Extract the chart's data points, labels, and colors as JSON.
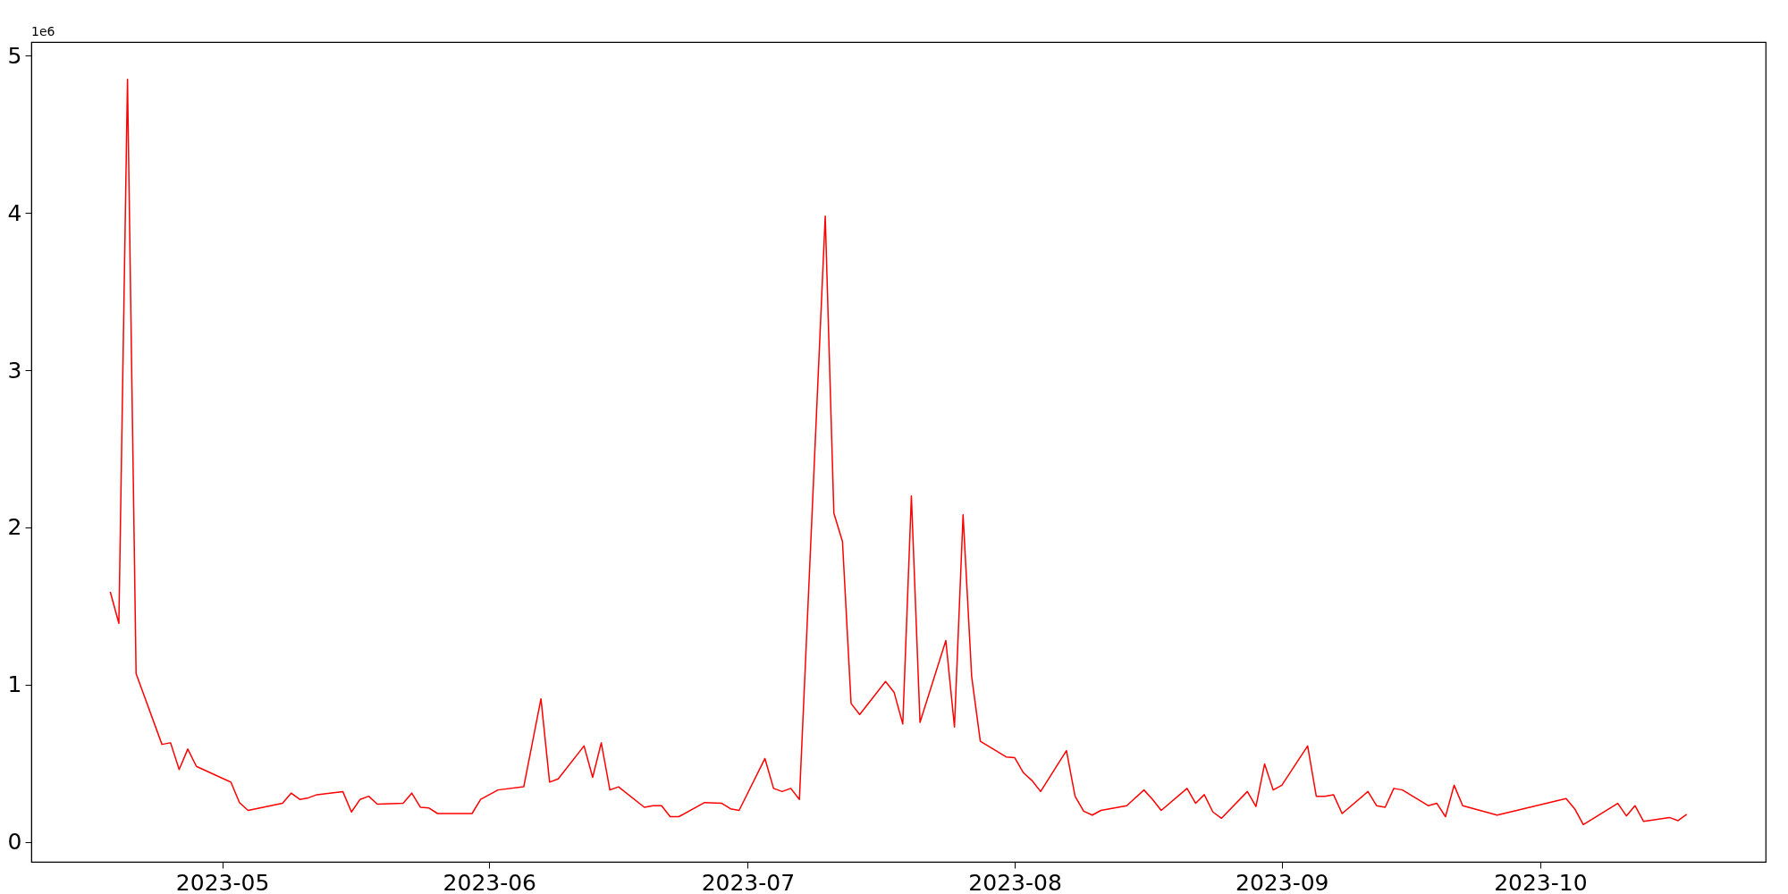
{
  "chart_data": {
    "type": "line",
    "x": [
      "2023-04-18",
      "2023-04-19",
      "2023-04-20",
      "2023-04-21",
      "2023-04-24",
      "2023-04-25",
      "2023-04-26",
      "2023-04-27",
      "2023-04-28",
      "2023-05-02",
      "2023-05-03",
      "2023-05-04",
      "2023-05-08",
      "2023-05-09",
      "2023-05-10",
      "2023-05-11",
      "2023-05-12",
      "2023-05-15",
      "2023-05-16",
      "2023-05-17",
      "2023-05-18",
      "2023-05-19",
      "2023-05-22",
      "2023-05-23",
      "2023-05-24",
      "2023-05-25",
      "2023-05-26",
      "2023-05-30",
      "2023-05-31",
      "2023-06-02",
      "2023-06-05",
      "2023-06-07",
      "2023-06-08",
      "2023-06-09",
      "2023-06-12",
      "2023-06-13",
      "2023-06-14",
      "2023-06-15",
      "2023-06-16",
      "2023-06-19",
      "2023-06-20",
      "2023-06-21",
      "2023-06-22",
      "2023-06-23",
      "2023-06-26",
      "2023-06-28",
      "2023-06-29",
      "2023-06-30",
      "2023-07-03",
      "2023-07-04",
      "2023-07-05",
      "2023-07-06",
      "2023-07-07",
      "2023-07-10",
      "2023-07-11",
      "2023-07-12",
      "2023-07-13",
      "2023-07-14",
      "2023-07-17",
      "2023-07-18",
      "2023-07-19",
      "2023-07-20",
      "2023-07-21",
      "2023-07-24",
      "2023-07-25",
      "2023-07-26",
      "2023-07-27",
      "2023-07-28",
      "2023-07-31",
      "2023-08-01",
      "2023-08-02",
      "2023-08-03",
      "2023-08-04",
      "2023-08-07",
      "2023-08-08",
      "2023-08-09",
      "2023-08-10",
      "2023-08-11",
      "2023-08-14",
      "2023-08-16",
      "2023-08-17",
      "2023-08-18",
      "2023-08-21",
      "2023-08-22",
      "2023-08-23",
      "2023-08-24",
      "2023-08-25",
      "2023-08-28",
      "2023-08-29",
      "2023-08-30",
      "2023-08-31",
      "2023-09-01",
      "2023-09-04",
      "2023-09-05",
      "2023-09-06",
      "2023-09-07",
      "2023-09-08",
      "2023-09-11",
      "2023-09-12",
      "2023-09-13",
      "2023-09-14",
      "2023-09-15",
      "2023-09-18",
      "2023-09-19",
      "2023-09-20",
      "2023-09-21",
      "2023-09-22",
      "2023-09-26",
      "2023-10-04",
      "2023-10-05",
      "2023-10-06",
      "2023-10-10",
      "2023-10-11",
      "2023-10-12",
      "2023-10-13",
      "2023-10-16",
      "2023-10-17",
      "2023-10-18"
    ],
    "series": [
      {
        "color": "#ff0000",
        "values": [
          1.59,
          1.39,
          4.85,
          1.07,
          0.62,
          0.63,
          0.46,
          0.59,
          0.48,
          0.38,
          0.25,
          0.2,
          0.245,
          0.31,
          0.27,
          0.28,
          0.3,
          0.32,
          0.19,
          0.27,
          0.29,
          0.24,
          0.245,
          0.31,
          0.22,
          0.215,
          0.18,
          0.18,
          0.27,
          0.33,
          0.35,
          0.91,
          0.38,
          0.4,
          0.61,
          0.41,
          0.63,
          0.33,
          0.35,
          0.22,
          0.23,
          0.23,
          0.16,
          0.16,
          0.25,
          0.245,
          0.21,
          0.2,
          0.53,
          0.34,
          0.32,
          0.34,
          0.27,
          3.98,
          2.09,
          1.91,
          0.88,
          0.81,
          1.02,
          0.95,
          0.75,
          2.2,
          0.76,
          1.28,
          0.73,
          2.08,
          1.05,
          0.64,
          0.54,
          0.535,
          0.44,
          0.39,
          0.32,
          0.58,
          0.29,
          0.195,
          0.17,
          0.2,
          0.23,
          0.33,
          0.27,
          0.2,
          0.34,
          0.245,
          0.3,
          0.19,
          0.15,
          0.32,
          0.225,
          0.495,
          0.33,
          0.36,
          0.61,
          0.29,
          0.29,
          0.3,
          0.18,
          0.32,
          0.23,
          0.22,
          0.34,
          0.33,
          0.23,
          0.245,
          0.16,
          0.36,
          0.23,
          0.17,
          0.275,
          0.21,
          0.11,
          0.245,
          0.165,
          0.23,
          0.13,
          0.155,
          0.135,
          0.175
        ]
      }
    ],
    "xlim": [
      "2023-04-08T20:00",
      "2023-10-27T04:00"
    ],
    "xticks": [
      {
        "value": "2023-05-01",
        "label": "2023-05"
      },
      {
        "value": "2023-06-01",
        "label": "2023-06"
      },
      {
        "value": "2023-07-01",
        "label": "2023-07"
      },
      {
        "value": "2023-08-01",
        "label": "2023-08"
      },
      {
        "value": "2023-09-01",
        "label": "2023-09"
      },
      {
        "value": "2023-10-01",
        "label": "2023-10"
      }
    ],
    "ylim": [
      -0.127,
      5.087
    ],
    "yticks": [
      0,
      1,
      2,
      3,
      4,
      5
    ],
    "annotations": [
      "1e6"
    ],
    "grid": false,
    "marker": "none",
    "line_style": "solid"
  }
}
